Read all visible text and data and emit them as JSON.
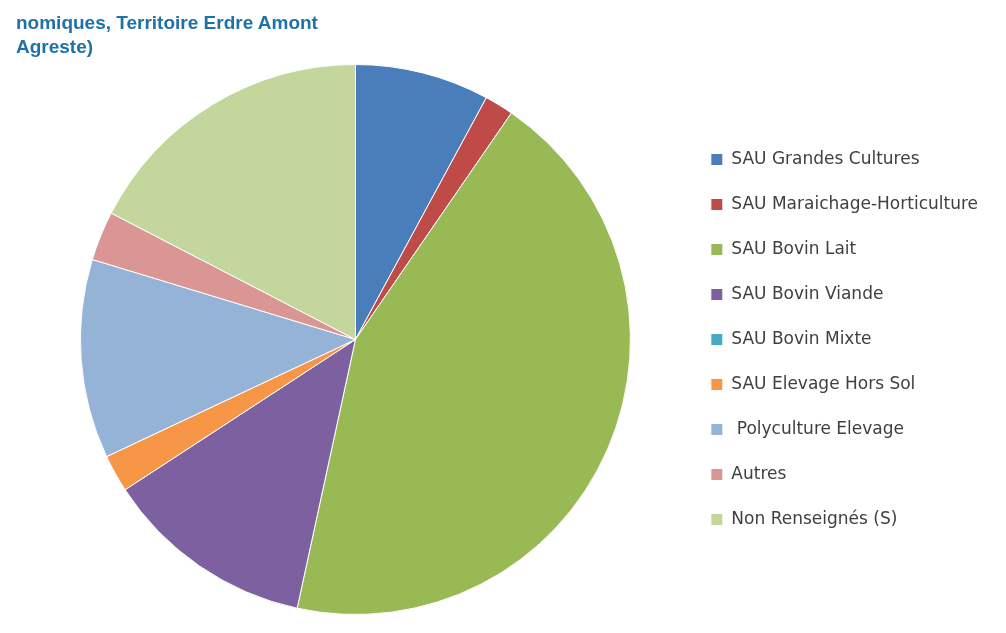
{
  "chart_data": {
    "type": "pie",
    "categories": [
      "SAU Grandes Cultures",
      "SAU Maraichage-Horticulture",
      "SAU Bovin Lait",
      "SAU Bovin Viande",
      "SAU Bovin Mixte",
      "SAU Elevage Hors Sol",
      " Polyculture Elevage",
      "Autres",
      "Non Renseignés (S)"
    ],
    "values": [
      7.9,
      1.7,
      43.8,
      12.4,
      0,
      2.2,
      11.7,
      2.9,
      17.4
    ],
    "colors": [
      "#4a7ebb",
      "#be4b48",
      "#98b954",
      "#7d60a0",
      "#46aac5",
      "#f79646",
      "#95b3d7",
      "#d99694",
      "#c3d69b"
    ],
    "legend": "right",
    "annotations": [
      "nomiques, Territoire Erdre Amont",
      "Agreste)"
    ]
  }
}
